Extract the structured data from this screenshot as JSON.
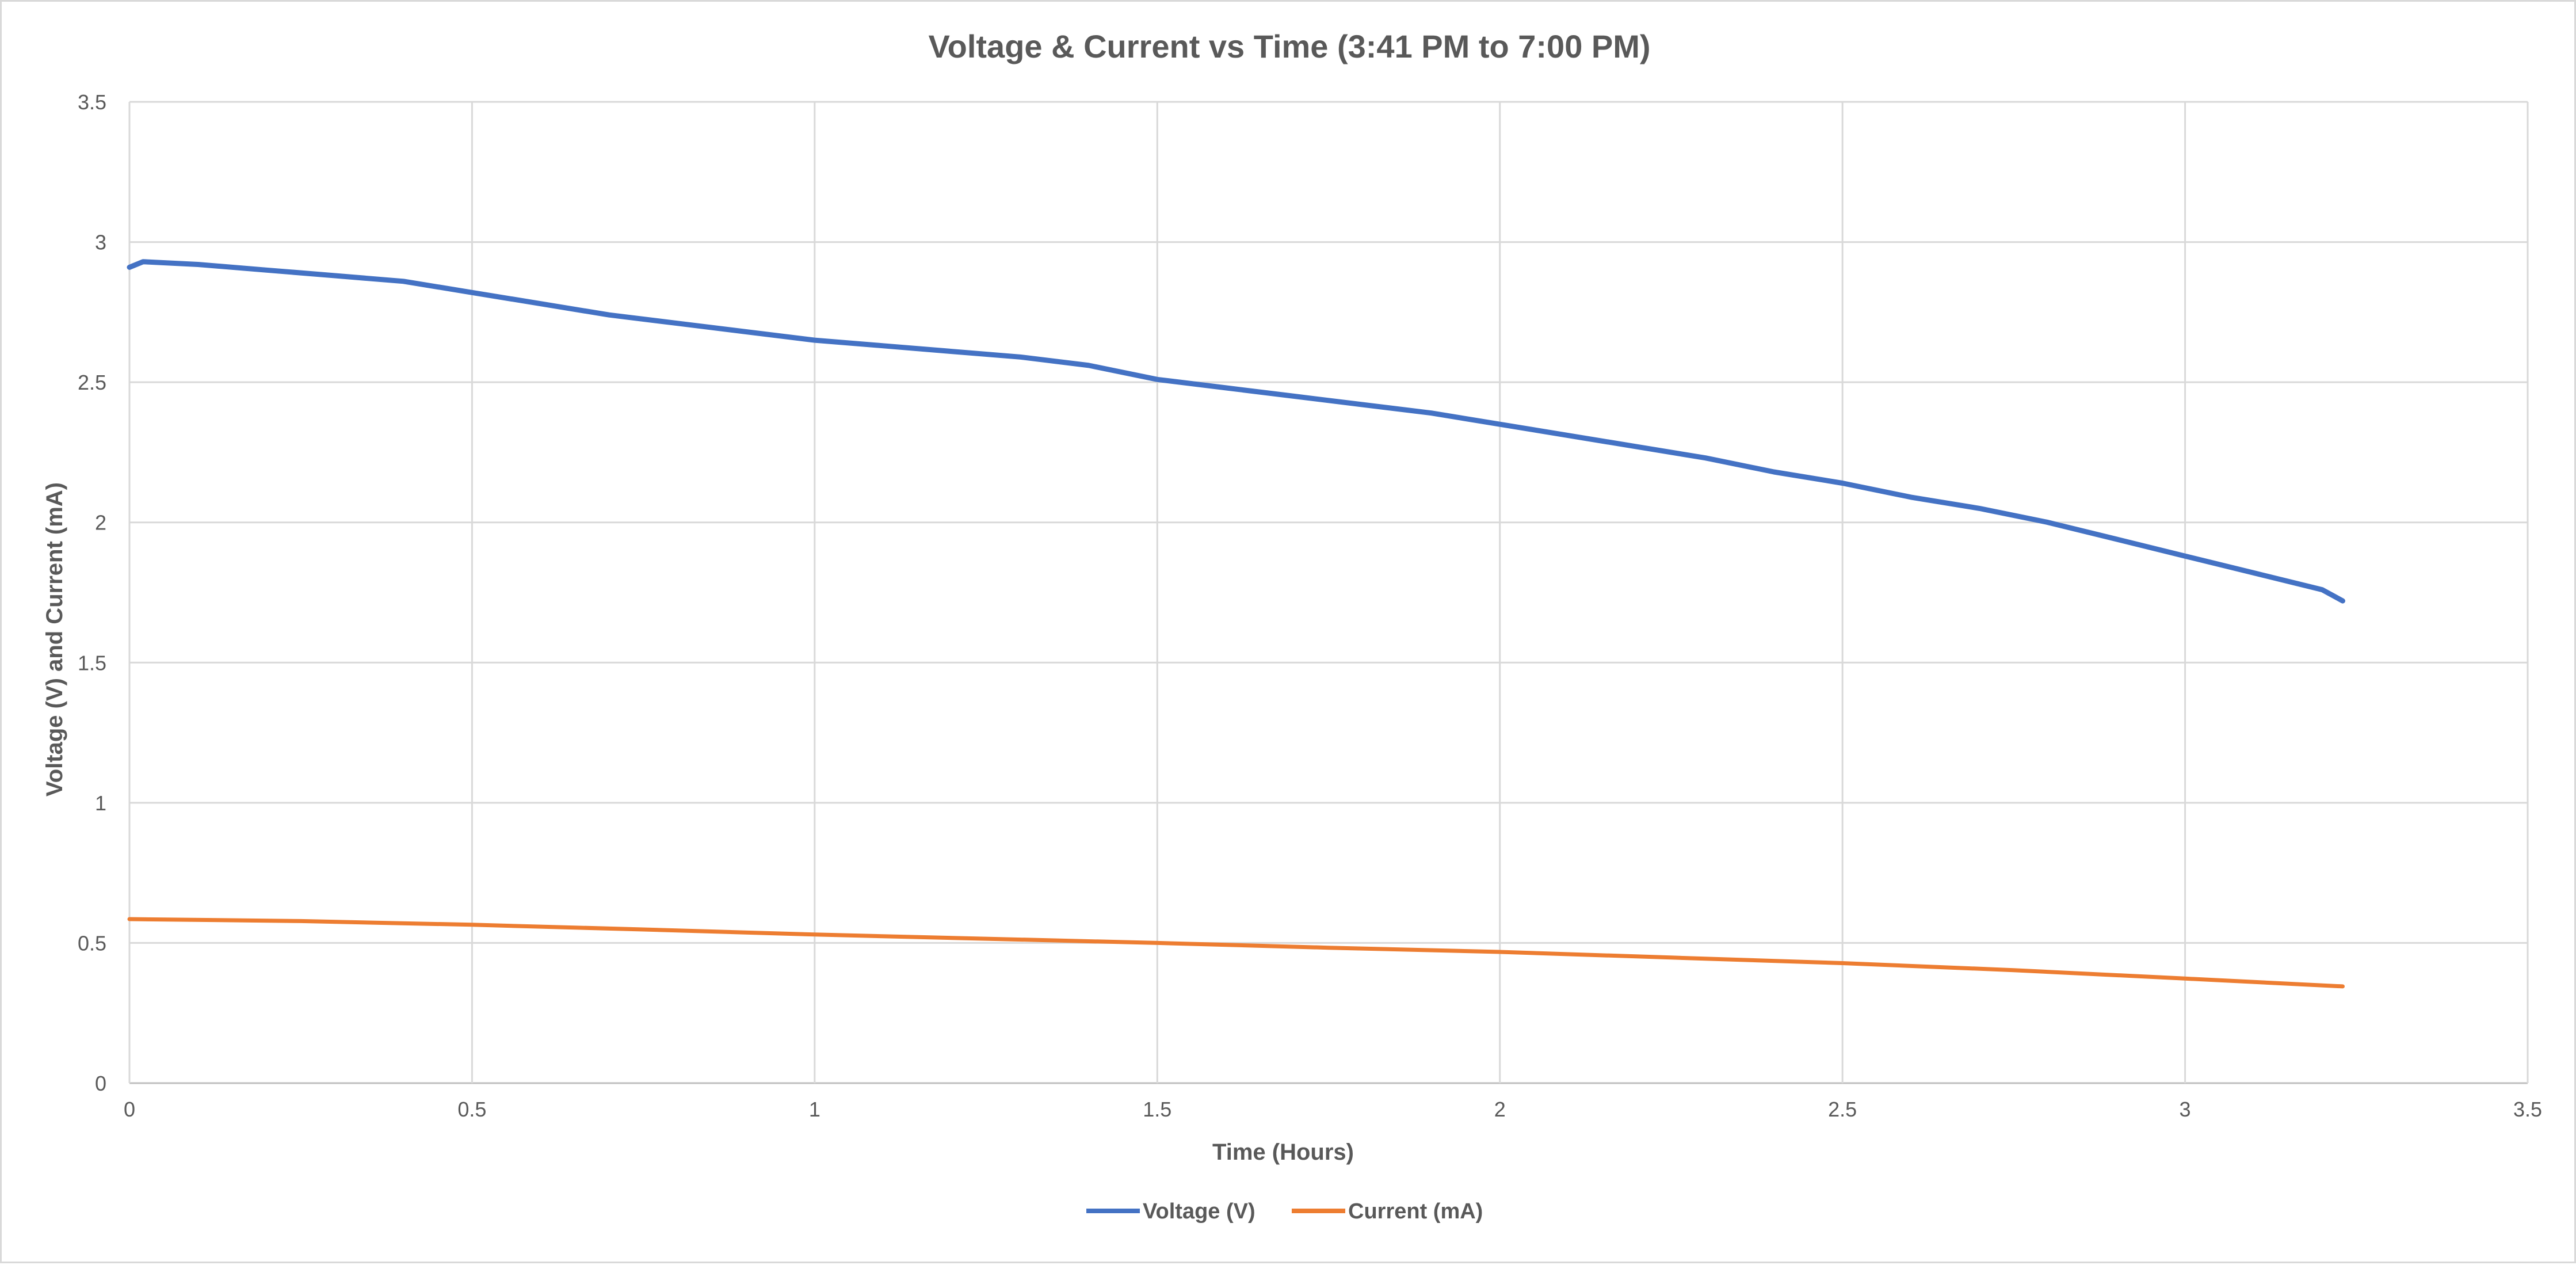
{
  "chart_data": {
    "type": "line",
    "title": "Voltage & Current vs Time (3:41 PM to 7:00 PM)",
    "xlabel": "Time (Hours)",
    "ylabel": "Voltage (V) and Current (mA)",
    "xlim": [
      0,
      3.5
    ],
    "ylim": [
      0,
      3.5
    ],
    "x_ticks": [
      0,
      0.5,
      1,
      1.5,
      2,
      2.5,
      3,
      3.5
    ],
    "x_tick_labels": [
      "0",
      "0.5",
      "1",
      "1.5",
      "2",
      "2.5",
      "3",
      "3.5"
    ],
    "y_ticks": [
      0,
      0.5,
      1,
      1.5,
      2,
      2.5,
      3,
      3.5
    ],
    "y_tick_labels": [
      "0",
      "0.5",
      "1",
      "1.5",
      "2",
      "2.5",
      "3",
      "3.5"
    ],
    "grid": true,
    "legend_position": "bottom",
    "series": [
      {
        "name": "Voltage (V)",
        "color": "#4472C4",
        "x": [
          0,
          0.02,
          0.1,
          0.2,
          0.3,
          0.4,
          0.5,
          0.6,
          0.7,
          0.8,
          0.9,
          1.0,
          1.1,
          1.2,
          1.3,
          1.4,
          1.5,
          1.6,
          1.7,
          1.8,
          1.9,
          2.0,
          2.1,
          2.2,
          2.3,
          2.4,
          2.5,
          2.6,
          2.7,
          2.8,
          2.9,
          3.0,
          3.1,
          3.2,
          3.23
        ],
        "y": [
          2.91,
          2.93,
          2.92,
          2.9,
          2.88,
          2.86,
          2.82,
          2.78,
          2.74,
          2.71,
          2.68,
          2.65,
          2.63,
          2.61,
          2.59,
          2.56,
          2.51,
          2.48,
          2.45,
          2.42,
          2.39,
          2.35,
          2.31,
          2.27,
          2.23,
          2.18,
          2.14,
          2.09,
          2.05,
          2.0,
          1.94,
          1.88,
          1.82,
          1.76,
          1.72
        ]
      },
      {
        "name": "Current (mA)",
        "color": "#ED7D31",
        "x": [
          0,
          0.25,
          0.5,
          0.75,
          1.0,
          1.25,
          1.5,
          1.75,
          2.0,
          2.25,
          2.5,
          2.75,
          3.0,
          3.23
        ],
        "y": [
          0.585,
          0.578,
          0.565,
          0.548,
          0.53,
          0.515,
          0.5,
          0.483,
          0.468,
          0.448,
          0.428,
          0.403,
          0.373,
          0.345
        ]
      }
    ]
  }
}
